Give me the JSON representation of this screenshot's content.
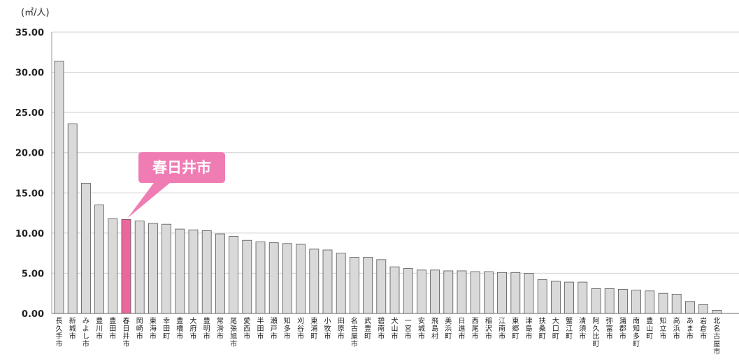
{
  "chart_data": {
    "type": "bar",
    "ylabel": "(㎡/人)",
    "ylim": [
      0,
      35
    ],
    "yticks": [
      "0.00",
      "5.00",
      "10.00",
      "15.00",
      "20.00",
      "25.00",
      "30.00",
      "35.00"
    ],
    "grid": true,
    "highlight_index": 5,
    "callout": "春日井市",
    "colors": {
      "bar": "#d9d9d9",
      "bar_stroke": "#555555",
      "highlight": "#e8689c",
      "callout_bg": "#f07cb4"
    },
    "categories": [
      "長久手市",
      "新城市",
      "みよし市",
      "豊川市",
      "豊田市",
      "春日井市",
      "岡崎市",
      "東海市",
      "幸田町",
      "豊橋市",
      "大府市",
      "豊明市",
      "常滑市",
      "尾張旭市",
      "愛西市",
      "半田市",
      "瀬戸市",
      "知多市",
      "刈谷市",
      "東浦町",
      "小牧市",
      "田原市",
      "名古屋市",
      "武豊町",
      "碧南市",
      "犬山市",
      "一宮市",
      "安城市",
      "飛島村",
      "美浜町",
      "日進市",
      "西尾市",
      "稲沢市",
      "江南市",
      "東郷町",
      "津島市",
      "扶桑町",
      "大口町",
      "蟹江町",
      "清須市",
      "阿久比町",
      "弥富市",
      "蒲郡市",
      "南知多町",
      "豊山町",
      "知立市",
      "高浜市",
      "あま市",
      "岩倉市",
      "北名古屋市"
    ],
    "values": [
      31.4,
      23.6,
      16.2,
      13.5,
      11.8,
      11.7,
      11.5,
      11.2,
      11.1,
      10.5,
      10.4,
      10.3,
      9.9,
      9.6,
      9.1,
      8.9,
      8.8,
      8.7,
      8.6,
      8.0,
      7.9,
      7.5,
      7.0,
      7.0,
      6.7,
      5.8,
      5.6,
      5.4,
      5.4,
      5.3,
      5.3,
      5.2,
      5.2,
      5.1,
      5.1,
      5.0,
      4.2,
      4.0,
      3.9,
      3.9,
      3.1,
      3.1,
      3.0,
      2.9,
      2.8,
      2.5,
      2.4,
      1.5,
      1.1,
      0.4
    ]
  }
}
